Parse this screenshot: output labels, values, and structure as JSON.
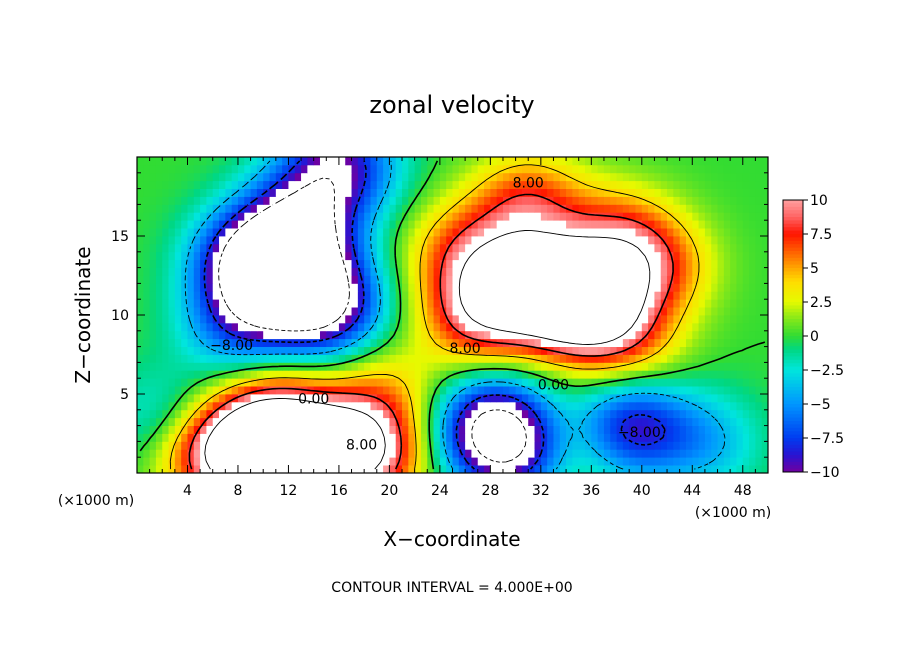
{
  "chart_data": {
    "type": "heatmap",
    "title": "zonal velocity",
    "xlabel": "X−coordinate",
    "ylabel": "Z−coordinate",
    "x_unit_label": "(×1000 m)",
    "x_ticks": [
      4,
      8,
      12,
      16,
      20,
      24,
      28,
      32,
      36,
      40,
      44,
      48
    ],
    "y_ticks": [
      5,
      10,
      15
    ],
    "xlim": [
      0,
      50
    ],
    "ylim": [
      0,
      20
    ],
    "colorbar": {
      "ticks": [
        "10",
        "7.5",
        "5",
        "2.5",
        "0",
        "−2.5",
        "−5",
        "−7.5",
        "−10"
      ],
      "range": [
        -10,
        10
      ]
    },
    "contour_labels": [
      {
        "text": "8.00",
        "x": 31,
        "z": 18.4
      },
      {
        "text": "−8.00",
        "x": 7.5,
        "z": 8.1
      },
      {
        "text": "8.00",
        "x": 26,
        "z": 7.9
      },
      {
        "text": "0.00",
        "x": 33,
        "z": 5.6
      },
      {
        "text": "0.00",
        "x": 14,
        "z": 4.7
      },
      {
        "text": "8.00",
        "x": 17.8,
        "z": 1.8
      },
      {
        "text": "−8.00",
        "x": 39.8,
        "z": 2.6
      }
    ],
    "note": "CONTOUR INTERVAL = 4.000E+00",
    "blobs": [
      {
        "x": 30,
        "z": 12,
        "v": 6
      },
      {
        "x": 33,
        "z": 11.5,
        "v": 11
      },
      {
        "x": 36,
        "z": 10.5,
        "v": 12
      },
      {
        "x": 27,
        "z": 10,
        "v": 8
      },
      {
        "x": 26,
        "z": 14,
        "v": 6
      },
      {
        "x": 38,
        "z": 15,
        "v": 6
      },
      {
        "x": 31,
        "z": 17,
        "v": 7
      },
      {
        "x": 41,
        "z": 13,
        "v": 6
      },
      {
        "x": 39,
        "z": 8,
        "v": 4
      },
      {
        "x": 12,
        "z": 12.5,
        "v": -12
      },
      {
        "x": 9,
        "z": 13.5,
        "v": -10
      },
      {
        "x": 15,
        "z": 10.5,
        "v": -10
      },
      {
        "x": 13,
        "z": 16,
        "v": -9
      },
      {
        "x": 8,
        "z": 9.5,
        "v": -6
      },
      {
        "x": 16,
        "z": 19.5,
        "v": -9
      },
      {
        "x": 10,
        "z": 1.5,
        "v": 12
      },
      {
        "x": 15,
        "z": 1.6,
        "v": 10
      },
      {
        "x": 6,
        "z": 1.2,
        "v": 8
      },
      {
        "x": 18.5,
        "z": 1.2,
        "v": 8
      },
      {
        "x": 11,
        "z": 3.3,
        "v": 7
      },
      {
        "x": 34,
        "z": 1.2,
        "v": -6
      },
      {
        "x": 28,
        "z": 3,
        "v": -10
      },
      {
        "x": 39,
        "z": 3,
        "v": -9
      },
      {
        "x": 30,
        "z": 1.5,
        "v": -8
      },
      {
        "x": 34,
        "z": 1.5,
        "v": 9
      },
      {
        "x": 19.5,
        "z": 5,
        "v": 4
      },
      {
        "x": 45,
        "z": 2,
        "v": -4
      },
      {
        "x": 2,
        "z": 3.5,
        "v": -3
      }
    ]
  }
}
